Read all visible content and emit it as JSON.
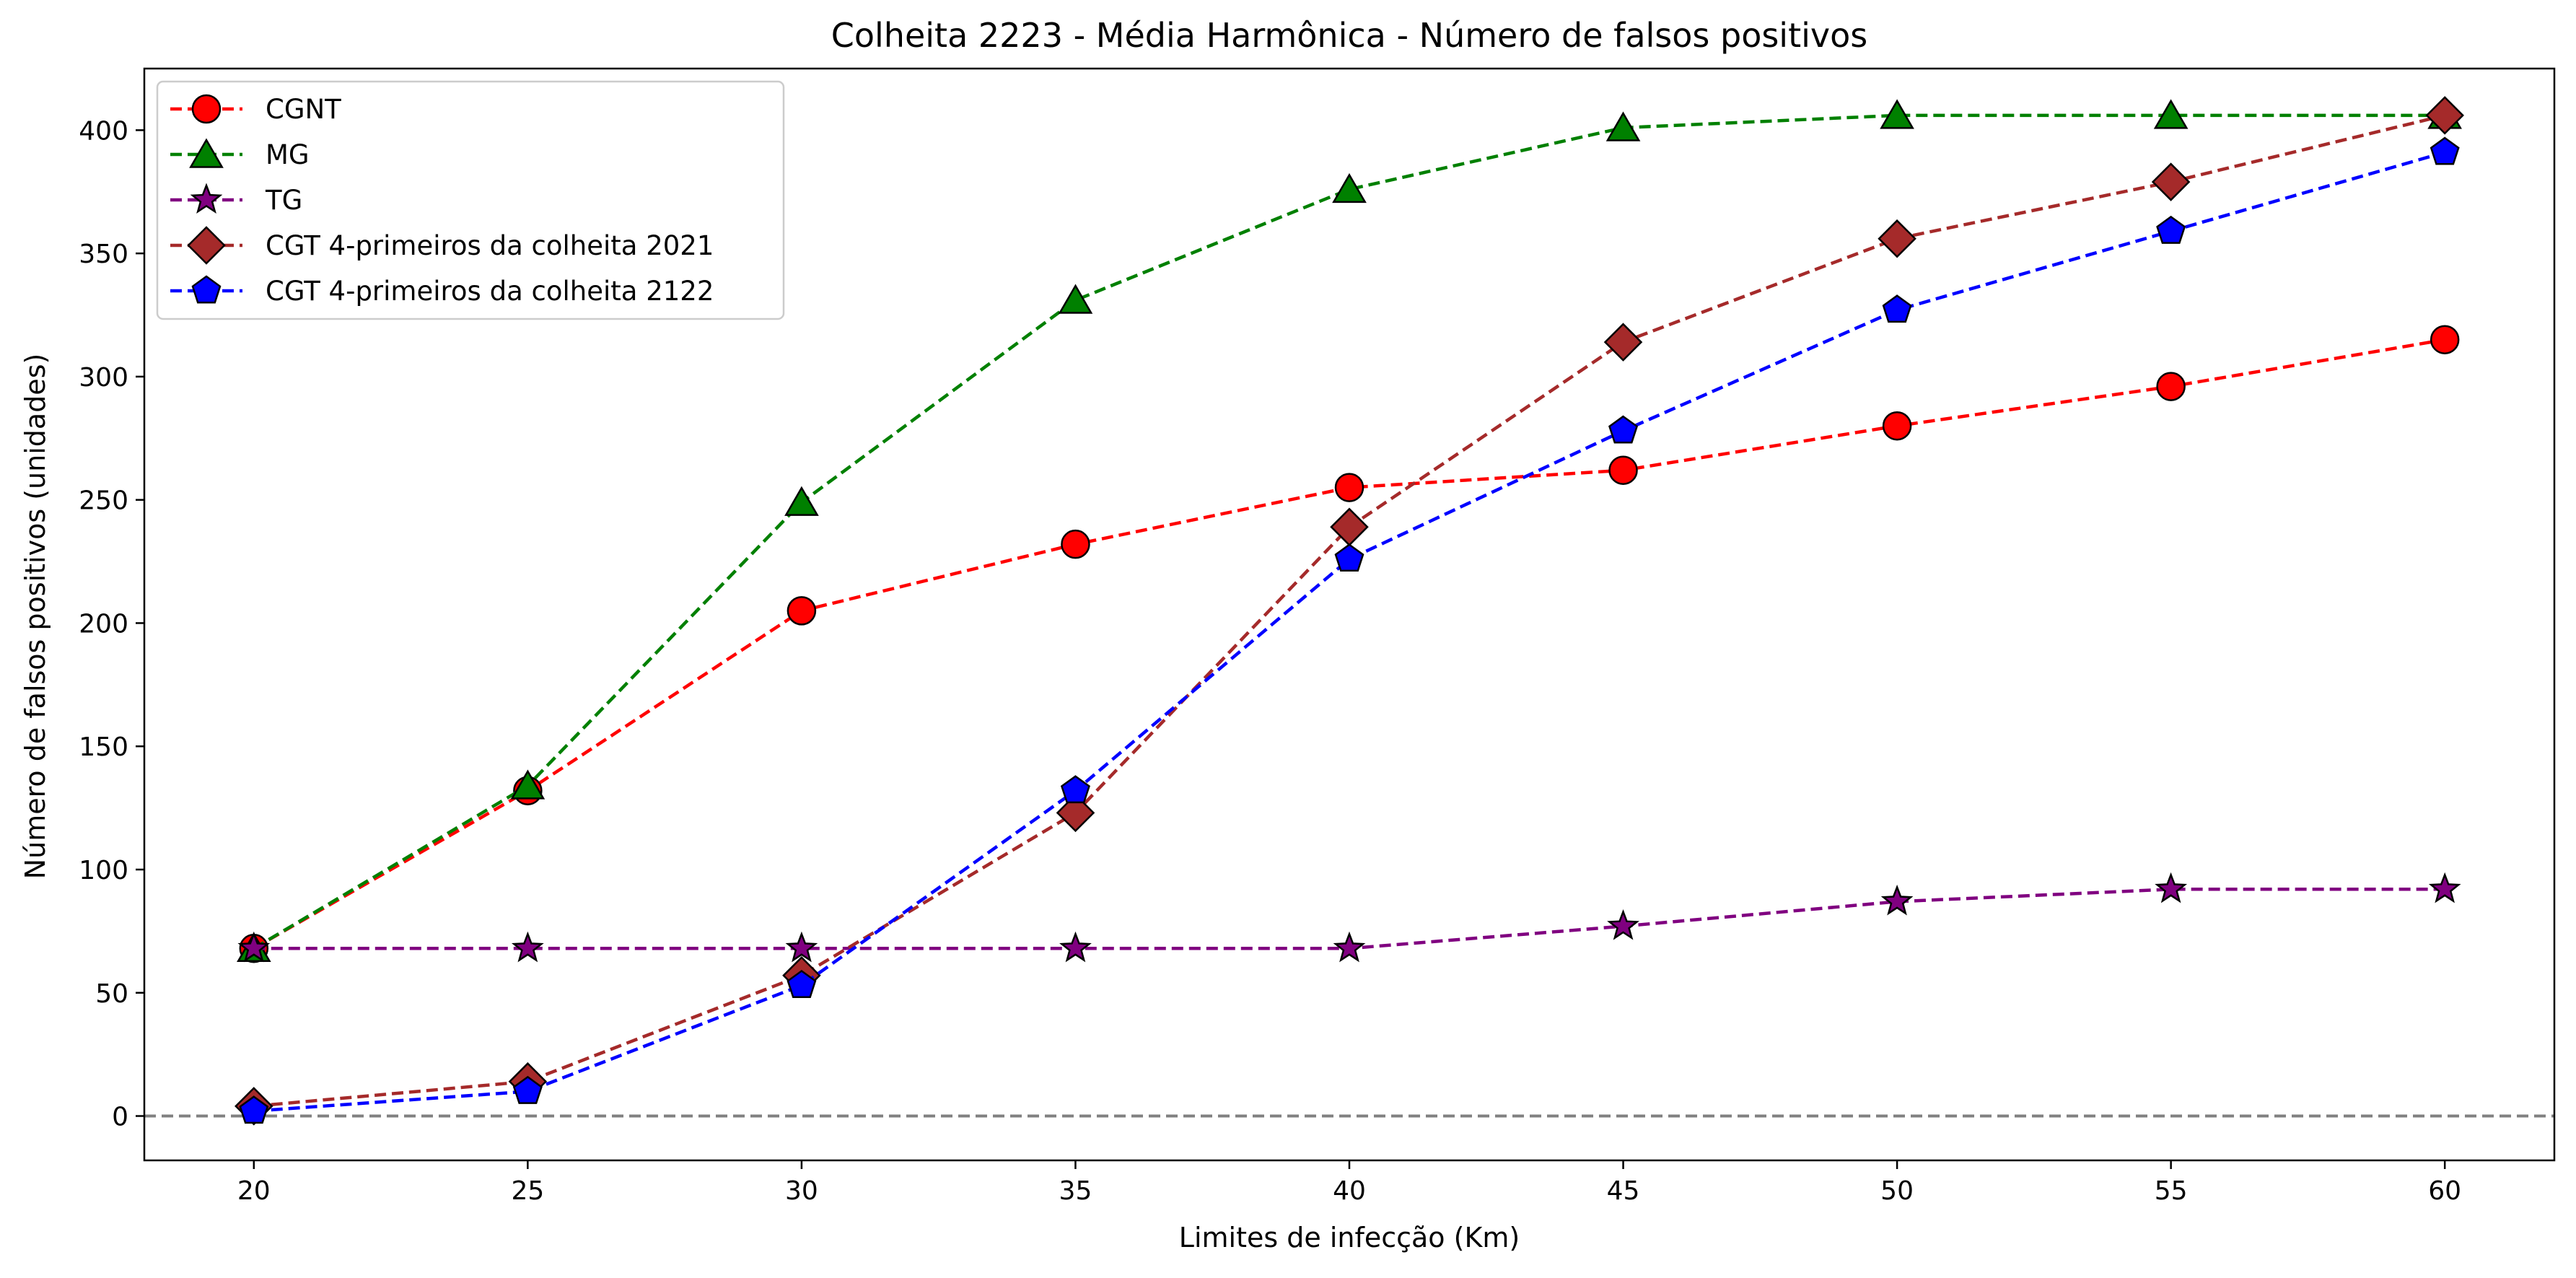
{
  "chart_data": {
    "type": "line",
    "title": "Colheita 2223 - Média Harmônica - Número de falsos positivos",
    "xlabel": "Limites de infecção (Km)",
    "ylabel": "Número de falsos positivos (unidades)",
    "x": [
      20,
      25,
      30,
      35,
      40,
      45,
      50,
      55,
      60
    ],
    "xticks": [
      "20",
      "25",
      "30",
      "35",
      "40",
      "45",
      "50",
      "55",
      "60"
    ],
    "yticks": [
      "0",
      "50",
      "100",
      "150",
      "200",
      "250",
      "300",
      "350",
      "400"
    ],
    "xlim": [
      18,
      62
    ],
    "ylim": [
      -18,
      425
    ],
    "grid": false,
    "legend_position": "upper-left",
    "reference_line": {
      "y": 0,
      "color": "#808080",
      "style": "dashed"
    },
    "series": [
      {
        "name": "CGNT",
        "color": "#ff0000",
        "marker": "circle",
        "values": [
          68,
          132,
          205,
          232,
          255,
          262,
          280,
          296,
          315
        ]
      },
      {
        "name": "MG",
        "color": "#008000",
        "marker": "triangle",
        "values": [
          68,
          134,
          249,
          331,
          376,
          401,
          406,
          406,
          406
        ]
      },
      {
        "name": "TG",
        "color": "#800080",
        "marker": "star",
        "values": [
          68,
          68,
          68,
          68,
          68,
          77,
          87,
          92,
          92
        ]
      },
      {
        "name": "CGT 4-primeiros da colheita 2021",
        "color": "#a52a2a",
        "marker": "diamond",
        "values": [
          4,
          14,
          57,
          123,
          239,
          314,
          356,
          379,
          406
        ]
      },
      {
        "name": "CGT 4-primeiros da colheita 2122",
        "color": "#0000ff",
        "marker": "pentagon",
        "values": [
          2,
          10,
          53,
          132,
          226,
          278,
          327,
          359,
          391
        ]
      }
    ]
  }
}
